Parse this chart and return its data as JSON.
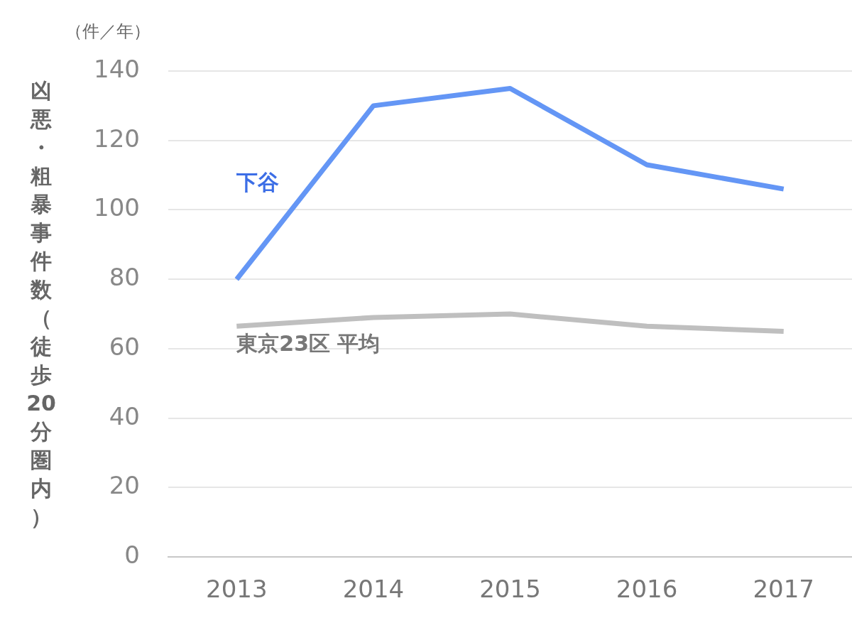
{
  "chart_data": {
    "type": "line",
    "ylabel": "凶悪・粗暴事件数（徒歩20分圏内）",
    "annotations": [
      "（件／年）"
    ],
    "categories": [
      "2013",
      "2014",
      "2015",
      "2016",
      "2017"
    ],
    "series": [
      {
        "name": "下谷",
        "color": "#6496f5",
        "values": [
          80,
          130,
          135,
          113,
          106
        ]
      },
      {
        "name": "東京23区 平均",
        "color": "#bfbfbf",
        "values": [
          66.5,
          69,
          70,
          66.5,
          65
        ]
      }
    ],
    "ylim": [
      0,
      140
    ],
    "yticks": [
      0,
      20,
      40,
      60,
      80,
      100,
      120,
      140
    ],
    "grid": "y",
    "legend": false,
    "marker": "none",
    "line_style": "solid"
  }
}
